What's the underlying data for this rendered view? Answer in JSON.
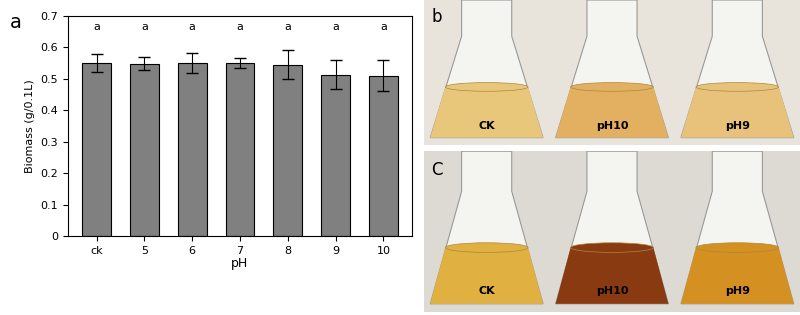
{
  "chart_data": {
    "type": "bar",
    "panel_label": "a",
    "x_label": "pH",
    "y_label": "Biomass (g/0.1L)",
    "categories": [
      "ck",
      "5",
      "6",
      "7",
      "8",
      "9",
      "10"
    ],
    "values": [
      0.55,
      0.548,
      0.55,
      0.55,
      0.545,
      0.513,
      0.51
    ],
    "errors": [
      0.03,
      0.02,
      0.033,
      0.015,
      0.045,
      0.047,
      0.048
    ],
    "letters": [
      "a",
      "a",
      "a",
      "a",
      "a",
      "a",
      "a"
    ],
    "color": "#808080",
    "ylim": [
      0,
      0.7
    ],
    "yticks": [
      0,
      0.1,
      0.2,
      0.3,
      0.4,
      0.5,
      0.6,
      0.7
    ],
    "grid": false
  },
  "photos": [
    {
      "panel_label": "b",
      "labels": [
        "CK",
        "pH10",
        "pH9"
      ]
    },
    {
      "panel_label": "C",
      "labels": [
        "CK",
        "pH10",
        "pH9"
      ]
    }
  ]
}
